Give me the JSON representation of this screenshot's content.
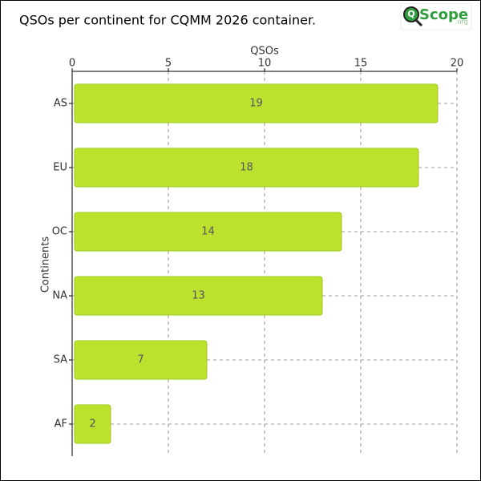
{
  "logo": {
    "mark": "Q",
    "name": "Scope",
    "domain": ".org"
  },
  "chart_data": {
    "type": "barh",
    "title": "QSOs per continent for CQMM 2026 container.",
    "xlabel": "QSOs",
    "ylabel": "Continents",
    "categories": [
      "AS",
      "EU",
      "OC",
      "NA",
      "SA",
      "AF"
    ],
    "values": [
      19,
      18,
      14,
      13,
      7,
      2
    ],
    "color": "#bce22e",
    "edge_color": "#9fca1a",
    "xlim": [
      0,
      20
    ],
    "xticks": [
      0,
      5,
      10,
      15,
      20
    ],
    "grid": true
  }
}
